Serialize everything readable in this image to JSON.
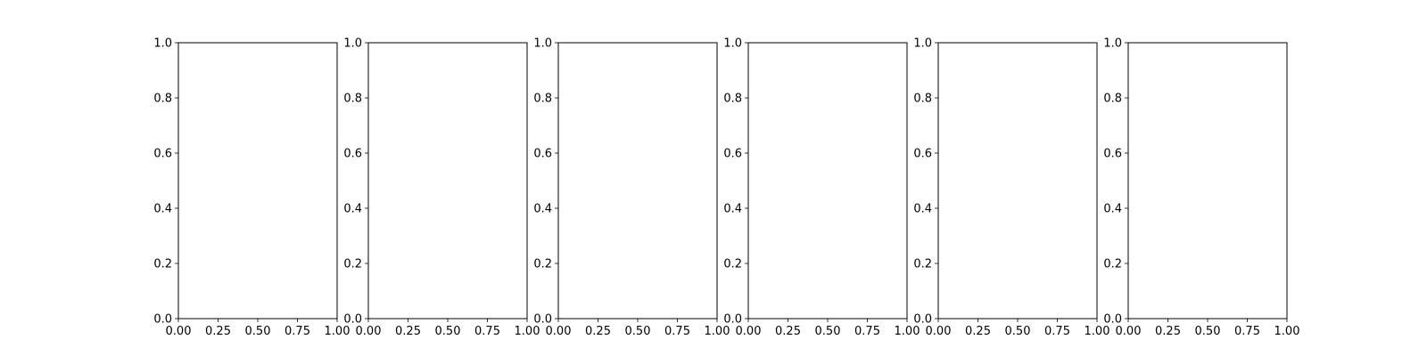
{
  "chart_data": [
    {
      "type": "scatter",
      "title": "",
      "xlabel": "",
      "ylabel": "",
      "xlim": [
        0.0,
        1.0
      ],
      "ylim": [
        0.0,
        1.0
      ],
      "x_ticks": [
        "0.00",
        "0.25",
        "0.50",
        "0.75",
        "1.00"
      ],
      "y_ticks": [
        "0.0",
        "0.2",
        "0.4",
        "0.6",
        "0.8",
        "1.0"
      ],
      "grid": false,
      "series": []
    },
    {
      "type": "scatter",
      "title": "",
      "xlabel": "",
      "ylabel": "",
      "xlim": [
        0.0,
        1.0
      ],
      "ylim": [
        0.0,
        1.0
      ],
      "x_ticks": [
        "0.00",
        "0.25",
        "0.50",
        "0.75",
        "1.00"
      ],
      "y_ticks": [
        "0.0",
        "0.2",
        "0.4",
        "0.6",
        "0.8",
        "1.0"
      ],
      "grid": false,
      "series": []
    },
    {
      "type": "scatter",
      "title": "",
      "xlabel": "",
      "ylabel": "",
      "xlim": [
        0.0,
        1.0
      ],
      "ylim": [
        0.0,
        1.0
      ],
      "x_ticks": [
        "0.00",
        "0.25",
        "0.50",
        "0.75",
        "1.00"
      ],
      "y_ticks": [
        "0.0",
        "0.2",
        "0.4",
        "0.6",
        "0.8",
        "1.0"
      ],
      "grid": false,
      "series": []
    },
    {
      "type": "scatter",
      "title": "",
      "xlabel": "",
      "ylabel": "",
      "xlim": [
        0.0,
        1.0
      ],
      "ylim": [
        0.0,
        1.0
      ],
      "x_ticks": [
        "0.00",
        "0.25",
        "0.50",
        "0.75",
        "1.00"
      ],
      "y_ticks": [
        "0.0",
        "0.2",
        "0.4",
        "0.6",
        "0.8",
        "1.0"
      ],
      "grid": false,
      "series": []
    },
    {
      "type": "scatter",
      "title": "",
      "xlabel": "",
      "ylabel": "",
      "xlim": [
        0.0,
        1.0
      ],
      "ylim": [
        0.0,
        1.0
      ],
      "x_ticks": [
        "0.00",
        "0.25",
        "0.50",
        "0.75",
        "1.00"
      ],
      "y_ticks": [
        "0.0",
        "0.2",
        "0.4",
        "0.6",
        "0.8",
        "1.0"
      ],
      "grid": false,
      "series": []
    },
    {
      "type": "scatter",
      "title": "",
      "xlabel": "",
      "ylabel": "",
      "xlim": [
        0.0,
        1.0
      ],
      "ylim": [
        0.0,
        1.0
      ],
      "x_ticks": [
        "0.00",
        "0.25",
        "0.50",
        "0.75",
        "1.00"
      ],
      "y_ticks": [
        "0.0",
        "0.2",
        "0.4",
        "0.6",
        "0.8",
        "1.0"
      ],
      "grid": false,
      "series": []
    }
  ]
}
